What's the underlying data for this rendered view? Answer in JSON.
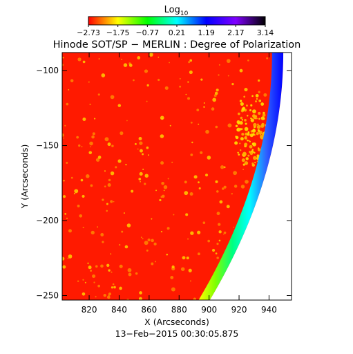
{
  "chart_data": {
    "type": "heatmap",
    "title": "Hinode SOT/SP − MERLIN : Degree of Polarization",
    "xlabel": "X (Arcseconds)",
    "ylabel": "Y (Arcseconds)",
    "date_label": "13−Feb−2015 00:30:05.875",
    "xlim": [
      802,
      955
    ],
    "ylim": [
      -253,
      -88
    ],
    "x_ticks": [
      {
        "value": 820,
        "label": "820"
      },
      {
        "value": 840,
        "label": "840"
      },
      {
        "value": 860,
        "label": "860"
      },
      {
        "value": 880,
        "label": "880"
      },
      {
        "value": 900,
        "label": "900"
      },
      {
        "value": 920,
        "label": "920"
      },
      {
        "value": 940,
        "label": "940"
      }
    ],
    "y_ticks": [
      {
        "value": -100,
        "label": "−100"
      },
      {
        "value": -150,
        "label": "−150"
      },
      {
        "value": -200,
        "label": "−200"
      },
      {
        "value": -250,
        "label": "−250"
      }
    ],
    "colorbar": {
      "label_main": "Log",
      "label_sub": "10",
      "range": [
        -2.73,
        3.14
      ],
      "tick_labels": [
        "−2.73",
        "−1.75",
        "−0.77",
        "0.21",
        "1.19",
        "2.17",
        "3.14"
      ],
      "colors": [
        "#ff0000",
        "#ffff00",
        "#00ff00",
        "#00ffff",
        "#0000ff",
        "#8000ff",
        "#000000"
      ]
    },
    "field_color": "#ff1a00",
    "limb_colors": [
      "#ffff00",
      "#7fff00",
      "#00ff80",
      "#00ffff",
      "#3060ff",
      "#0000ff"
    ],
    "off_disk_color": "#ffffff"
  }
}
